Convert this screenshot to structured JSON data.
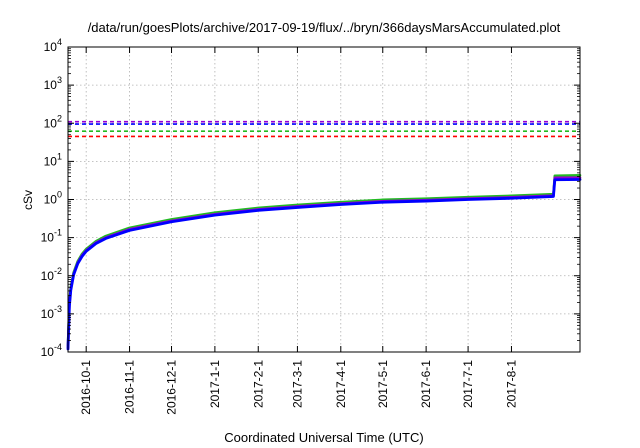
{
  "chart_data": {
    "type": "line",
    "title": "/data/run/goesPlots/archive/2017-09-19/flux/../bryn/366daysMarsAccumulated.plot",
    "xlabel": "Coordinated Universal Time (UTC)",
    "ylabel": "cSv",
    "yscale": "log",
    "ylim": [
      0.0001,
      10000
    ],
    "xlim": [
      "2016-09-18",
      "2017-09-19"
    ],
    "grid": true,
    "x_ticks": [
      "2016-10-1",
      "2016-11-1",
      "2016-12-1",
      "2017-1-1",
      "2017-2-1",
      "2017-3-1",
      "2017-4-1",
      "2017-5-1",
      "2017-6-1",
      "2017-7-1",
      "2017-8-1"
    ],
    "x_tick_dates": [
      "2016-10-01",
      "2016-11-01",
      "2016-12-01",
      "2017-01-01",
      "2017-02-01",
      "2017-03-01",
      "2017-04-01",
      "2017-05-01",
      "2017-06-01",
      "2017-07-01",
      "2017-08-01"
    ],
    "y_ticks": [
      {
        "value": 0.0001,
        "base": "10",
        "exp": "-4"
      },
      {
        "value": 0.001,
        "base": "10",
        "exp": "-3"
      },
      {
        "value": 0.01,
        "base": "10",
        "exp": "-2"
      },
      {
        "value": 0.1,
        "base": "10",
        "exp": "-1"
      },
      {
        "value": 1,
        "base": "10",
        "exp": "0"
      },
      {
        "value": 10,
        "base": "10",
        "exp": "1"
      },
      {
        "value": 100,
        "base": "10",
        "exp": "2"
      },
      {
        "value": 1000,
        "base": "10",
        "exp": "3"
      },
      {
        "value": 10000,
        "base": "10",
        "exp": "4"
      }
    ],
    "thresholds": [
      {
        "value": 110,
        "color": "#9400d3",
        "style": "dashed"
      },
      {
        "value": 95,
        "color": "#0000ff",
        "style": "dashed"
      },
      {
        "value": 62,
        "color": "#22bb22",
        "style": "dashed"
      },
      {
        "value": 45,
        "color": "#ff0000",
        "style": "dashed"
      }
    ],
    "series": [
      {
        "color": "#22bb22",
        "x": [
          "2016-09-18",
          "2016-09-19",
          "2016-09-20",
          "2016-09-22",
          "2016-09-25",
          "2016-09-28",
          "2016-10-01",
          "2016-10-08",
          "2016-10-15",
          "2016-11-01",
          "2016-12-01",
          "2017-01-01",
          "2017-02-01",
          "2017-03-01",
          "2017-04-01",
          "2017-05-01",
          "2017-06-01",
          "2017-07-01",
          "2017-08-01",
          "2017-08-31",
          "2017-09-01",
          "2017-09-19"
        ],
        "y": [
          0.00015,
          0.002,
          0.005,
          0.012,
          0.024,
          0.037,
          0.05,
          0.08,
          0.11,
          0.18,
          0.3,
          0.45,
          0.6,
          0.72,
          0.85,
          0.98,
          1.05,
          1.15,
          1.25,
          1.38,
          4.2,
          4.3
        ]
      },
      {
        "color": "#9400d3",
        "x": [
          "2016-09-18",
          "2016-09-19",
          "2016-09-20",
          "2016-09-22",
          "2016-09-25",
          "2016-09-28",
          "2016-10-01",
          "2016-10-08",
          "2016-10-15",
          "2016-11-01",
          "2016-12-01",
          "2017-01-01",
          "2017-02-01",
          "2017-03-01",
          "2017-04-01",
          "2017-05-01",
          "2017-06-01",
          "2017-07-01",
          "2017-08-01",
          "2017-08-31",
          "2017-09-01",
          "2017-09-19"
        ],
        "y": [
          0.00013,
          0.0018,
          0.0045,
          0.011,
          0.022,
          0.034,
          0.046,
          0.074,
          0.1,
          0.165,
          0.275,
          0.41,
          0.55,
          0.66,
          0.78,
          0.9,
          0.96,
          1.05,
          1.14,
          1.26,
          3.7,
          3.75
        ]
      },
      {
        "color": "#0000ff",
        "x": [
          "2016-09-18",
          "2016-09-19",
          "2016-09-20",
          "2016-09-22",
          "2016-09-25",
          "2016-09-28",
          "2016-10-01",
          "2016-10-08",
          "2016-10-15",
          "2016-11-01",
          "2016-12-01",
          "2017-01-01",
          "2017-02-01",
          "2017-03-01",
          "2017-04-01",
          "2017-05-01",
          "2017-06-01",
          "2017-07-01",
          "2017-08-01",
          "2017-08-31",
          "2017-09-01",
          "2017-09-19"
        ],
        "y": [
          0.00012,
          0.0016,
          0.0042,
          0.0105,
          0.021,
          0.032,
          0.044,
          0.07,
          0.095,
          0.155,
          0.26,
          0.39,
          0.52,
          0.62,
          0.74,
          0.85,
          0.91,
          1.0,
          1.08,
          1.2,
          3.3,
          3.35
        ]
      }
    ]
  }
}
